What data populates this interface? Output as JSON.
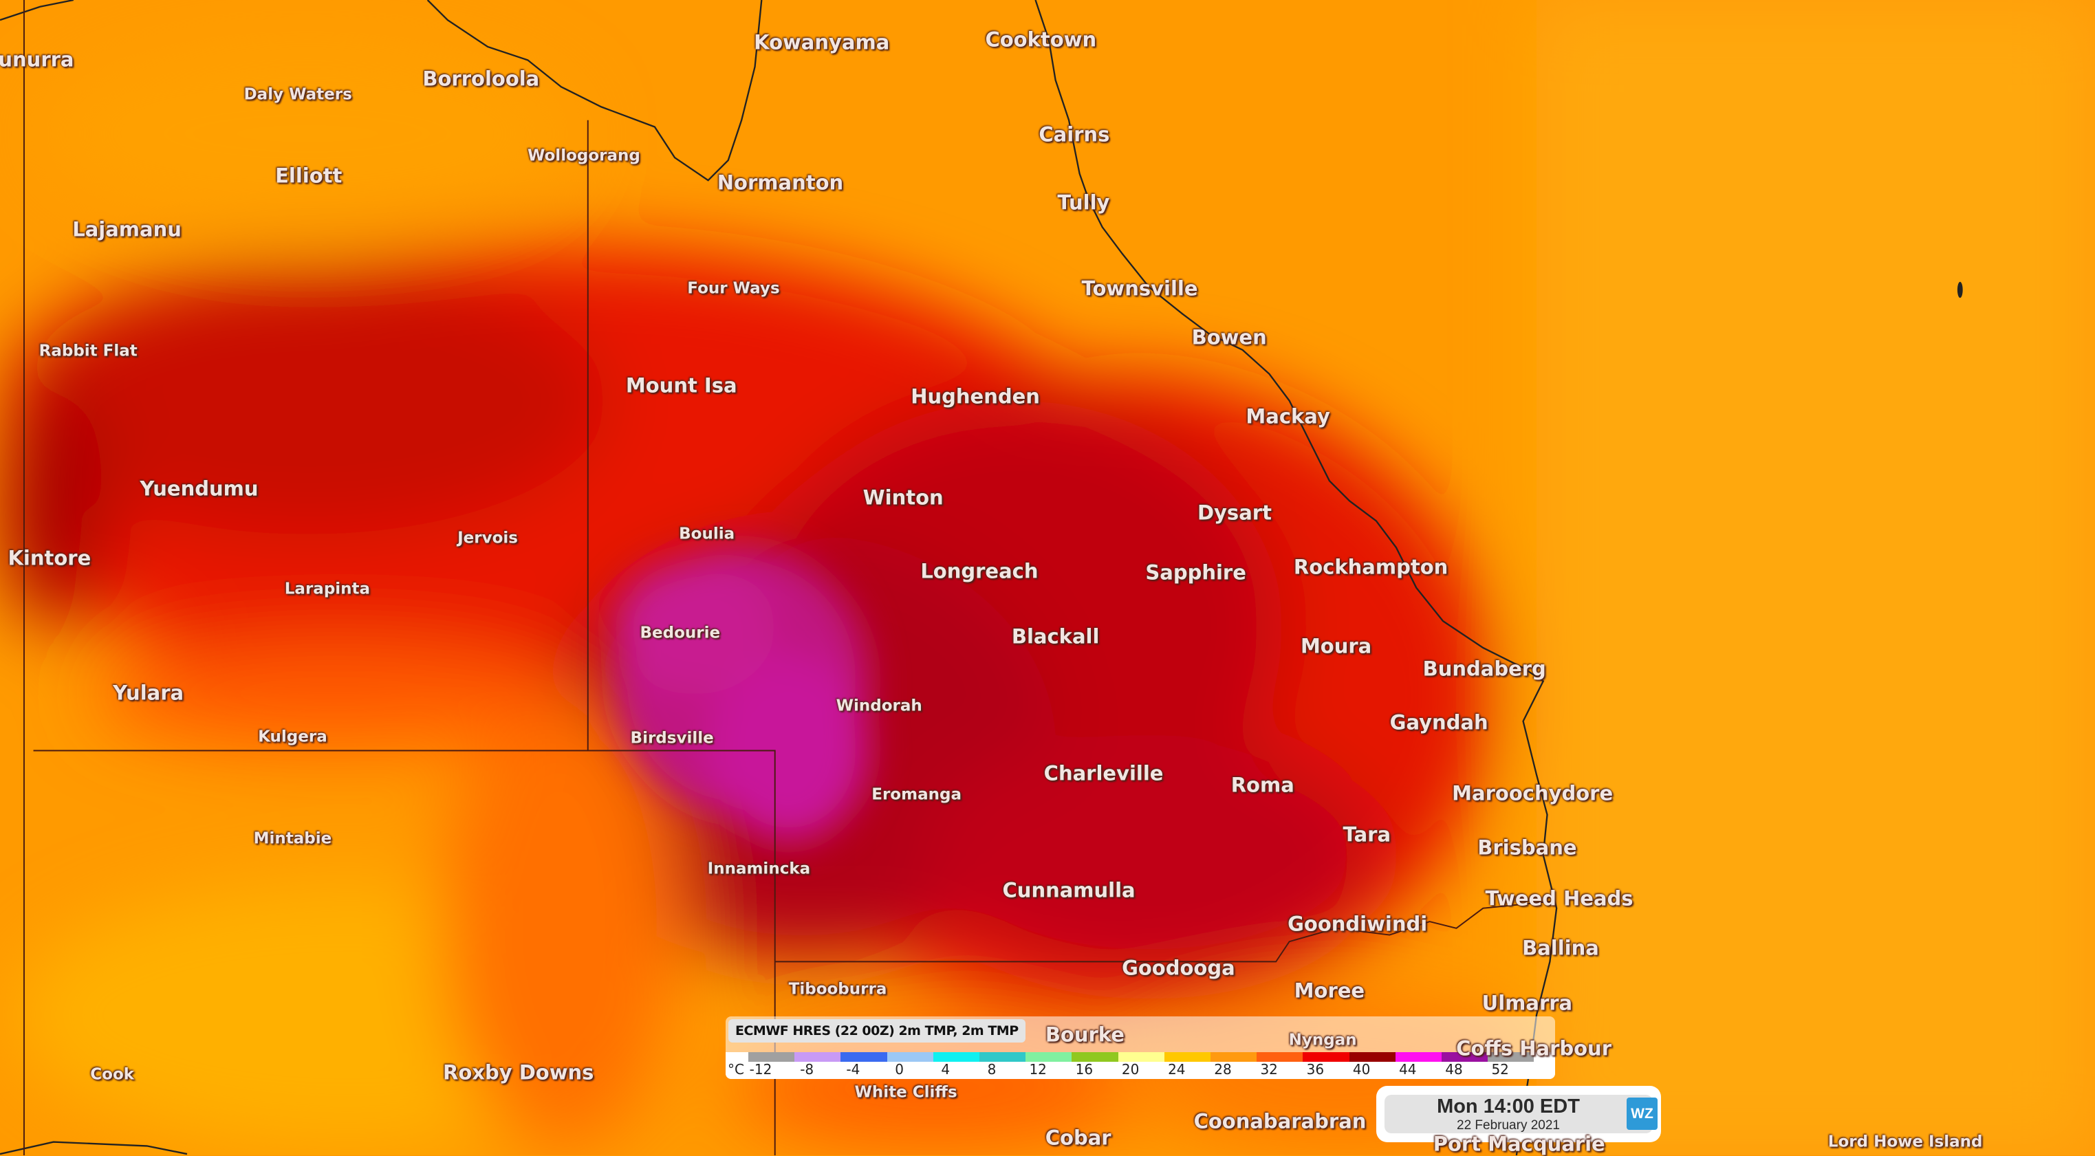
{
  "map": {
    "labels_major": [
      "unurra",
      "Kowanyama",
      "Cooktown",
      "Borroloola",
      "Cairns",
      "Elliott",
      "Normanton",
      "Tully",
      "Lajamanu",
      "Townsville",
      "Bowen",
      "Mount Isa",
      "Hughenden",
      "Mackay",
      "Yuendumu",
      "Winton",
      "Dysart",
      "Kintore",
      "Longreach",
      "Sapphire",
      "Rockhampton",
      "Blackall",
      "Moura",
      "Bundaberg",
      "Yulara",
      "Gayndah",
      "Charleville",
      "Roma",
      "Maroochydore",
      "Tara",
      "Brisbane",
      "Cunnamulla",
      "Tweed Heads",
      "Goondiwindi",
      "Ballina",
      "Goodooga",
      "Moree",
      "Ulmarra",
      "Bourke",
      "Coffs Harbour",
      "Roxby Downs",
      "Coonabarabran",
      "Cobar",
      "Port Macquarie"
    ],
    "labels_minor": [
      "Daly Waters",
      "Wollogorang",
      "Four Ways",
      "Rabbit Flat",
      "Jervois",
      "Boulia",
      "Larapinta",
      "Bedourie",
      "Windorah",
      "Kulgera",
      "Birdsville",
      "Eromanga",
      "Mintabie",
      "Innamincka",
      "Tibooburra",
      "Cook",
      "White Cliffs",
      "Lord Howe Island",
      "Nyngan"
    ]
  },
  "legend": {
    "title": "ECMWF HRES (22 00Z) 2m TMP, 2m TMP",
    "unit": "°C",
    "ticks": [
      "-12",
      "-8",
      "-4",
      "0",
      "4",
      "8",
      "12",
      "16",
      "20",
      "24",
      "28",
      "32",
      "36",
      "40",
      "44",
      "48",
      "52"
    ],
    "colors": [
      "#a0a0a0",
      "#c89af5",
      "#3a6af0",
      "#9cc8f5",
      "#10f0f0",
      "#30c8c8",
      "#80f0a0",
      "#90c820",
      "#ffff90",
      "#ffc800",
      "#ff9a10",
      "#ff6010",
      "#f00000",
      "#980000",
      "#ff10f0",
      "#9a10a0",
      "#a0a0a0"
    ]
  },
  "time": {
    "main": "Mon 14:00 EDT",
    "date": "22 February 2021",
    "logo": "WZ"
  }
}
